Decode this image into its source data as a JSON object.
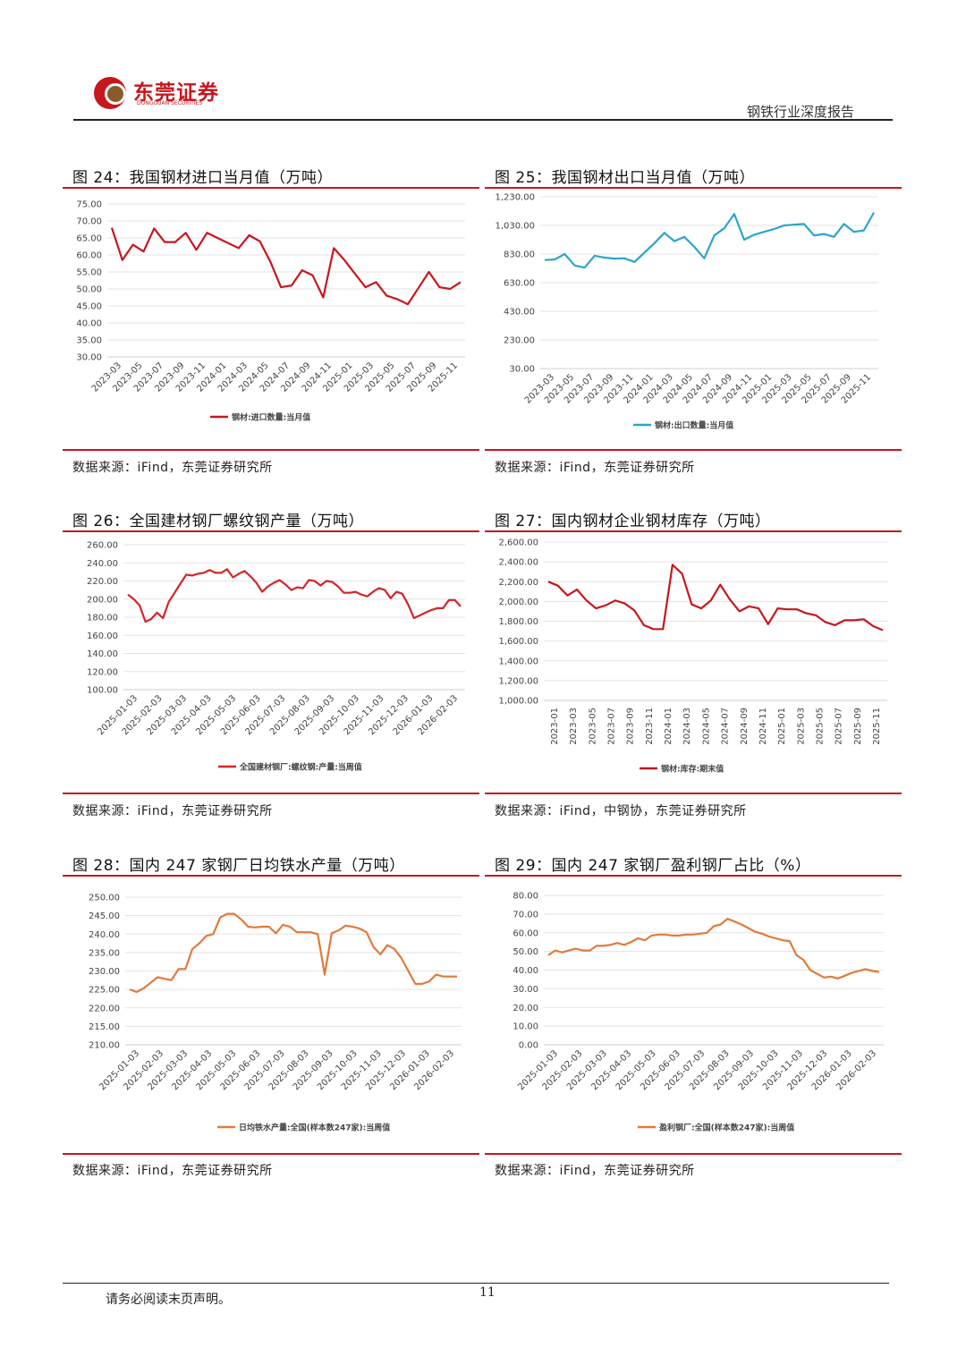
{
  "header": {
    "logo_cn": "东莞证券",
    "logo_en": "DONGGUAN SECURITIES",
    "report_name": "钢铁行业深度报告"
  },
  "panels": [
    {
      "title": "图 24：我国钢材进口当月值（万吨）",
      "source": "数据来源：iFind，东莞证券研究所"
    },
    {
      "title": "图 25：我国钢材出口当月值（万吨）",
      "source": "数据来源：iFind，东莞证券研究所"
    },
    {
      "title": "图 26：全国建材钢厂螺纹钢产量（万吨）",
      "source": "数据来源：iFind，东莞证券研究所"
    },
    {
      "title": "图 27：国内钢材企业钢材库存（万吨）",
      "source": "数据来源：iFind，中钢协，东莞证券研究所"
    },
    {
      "title": "图 28：国内 247 家钢厂日均铁水产量（万吨）",
      "source": "数据来源：iFind，东莞证券研究所"
    },
    {
      "title": "图 29：国内 247 家钢厂盈利钢厂占比（%）",
      "source": "数据来源：iFind，东莞证券研究所"
    }
  ],
  "footer": {
    "note": "请务必阅读末页声明。",
    "page": "11"
  },
  "chart_data": [
    {
      "type": "line",
      "id": "fig24",
      "color": "#c8161d",
      "yticks": [
        "30.00",
        "35.00",
        "40.00",
        "45.00",
        "50.00",
        "55.00",
        "60.00",
        "65.00",
        "70.00",
        "75.00"
      ],
      "ylim": [
        30,
        75
      ],
      "xticks": [
        "2023-03",
        "2023-05",
        "2023-07",
        "2023-09",
        "2023-11",
        "2024-01",
        "2024-03",
        "2024-05",
        "2024-07",
        "2024-09",
        "2024-11",
        "2025-01",
        "2025-03",
        "2025-05",
        "2025-07",
        "2025-09",
        "2025-11"
      ],
      "legend": "钢材:进口数量:当月值",
      "values": [
        68,
        58.5,
        63,
        61,
        67.8,
        63.8,
        63.8,
        66.5,
        61.5,
        66.5,
        65,
        63.5,
        62,
        65.8,
        64,
        58,
        50.5,
        51,
        55.5,
        54,
        47.5,
        62,
        58.5,
        54.5,
        50.5,
        52,
        48,
        47,
        45.5,
        50.2,
        55,
        50.5,
        50,
        52
      ]
    },
    {
      "type": "line",
      "id": "fig25",
      "color": "#2aa6c9",
      "yticks": [
        "30.00",
        "230.00",
        "430.00",
        "630.00",
        "830.00",
        "1,030.00",
        "1,230.00"
      ],
      "ylim": [
        30,
        1230
      ],
      "xticks": [
        "2023-03",
        "2023-05",
        "2023-07",
        "2023-09",
        "2023-11",
        "2024-01",
        "2024-03",
        "2024-05",
        "2024-07",
        "2024-09",
        "2024-11",
        "2025-01",
        "2025-03",
        "2025-05",
        "2025-07",
        "2025-09",
        "2025-11"
      ],
      "legend": "钢材:出口数量:当月值",
      "values": [
        788,
        792,
        830,
        750,
        735,
        818,
        805,
        798,
        800,
        775,
        840,
        906,
        978,
        920,
        950,
        880,
        800,
        960,
        1010,
        1110,
        930,
        965,
        985,
        1005,
        1030,
        1035,
        1040,
        960,
        970,
        950,
        1040,
        985,
        995,
        1120
      ]
    },
    {
      "type": "line",
      "id": "fig26",
      "color": "#d4242a",
      "yticks": [
        "100.00",
        "120.00",
        "140.00",
        "160.00",
        "180.00",
        "200.00",
        "220.00",
        "240.00",
        "260.00"
      ],
      "ylim": [
        100,
        260
      ],
      "xticks": [
        "2025-01-03",
        "2025-02-03",
        "2025-03-03",
        "2025-04-03",
        "2025-05-03",
        "2025-06-03",
        "2025-07-03",
        "2025-08-03",
        "2025-09-03",
        "2025-10-03",
        "2025-11-03",
        "2025-12-03",
        "2026-01-03",
        "2026-02-03"
      ],
      "legend": "全国建材钢厂:螺纹钢:产量:当周值",
      "values": [
        205,
        200,
        193,
        175,
        178,
        185,
        179,
        197,
        207,
        217,
        227,
        226,
        228,
        229,
        232,
        229,
        229,
        233,
        224,
        228,
        231,
        225,
        218,
        208,
        214,
        218,
        221,
        216,
        210,
        213,
        212,
        221,
        220,
        215,
        220,
        219,
        214,
        207,
        207,
        208,
        205,
        203,
        208,
        212,
        210,
        201,
        208,
        206,
        194,
        179,
        182,
        185,
        188,
        190,
        190,
        199,
        199,
        192
      ]
    },
    {
      "type": "line",
      "id": "fig27",
      "color": "#c8161d",
      "yticks": [
        "1,000.00",
        "1,200.00",
        "1,400.00",
        "1,600.00",
        "1,800.00",
        "2,000.00",
        "2,200.00",
        "2,400.00",
        "2,600.00"
      ],
      "ylim": [
        1000,
        2600
      ],
      "xticks": [
        "2023-01",
        "2023-03",
        "2023-05",
        "2023-07",
        "2023-09",
        "2023-11",
        "2024-01",
        "2024-03",
        "2024-05",
        "2024-07",
        "2024-09",
        "2024-11",
        "2025-01",
        "2025-03",
        "2025-05",
        "2025-07",
        "2025-09",
        "2025-11"
      ],
      "legend": "钢材:库存:期末值",
      "values": [
        2200,
        2160,
        2060,
        2120,
        2010,
        1930,
        1960,
        2010,
        1980,
        1910,
        1760,
        1720,
        1720,
        2370,
        2280,
        1970,
        1930,
        2010,
        2170,
        2020,
        1900,
        1950,
        1930,
        1770,
        1930,
        1920,
        1920,
        1880,
        1860,
        1790,
        1760,
        1810,
        1810,
        1820,
        1750,
        1710
      ]
    },
    {
      "type": "line",
      "id": "fig28",
      "color": "#e07a3c",
      "yticks": [
        "210.00",
        "215.00",
        "220.00",
        "225.00",
        "230.00",
        "235.00",
        "240.00",
        "245.00",
        "250.00"
      ],
      "ylim": [
        210,
        250
      ],
      "xticks": [
        "2025-01-03",
        "2025-02-03",
        "2025-03-03",
        "2025-04-03",
        "2025-05-03",
        "2025-06-03",
        "2025-07-03",
        "2025-08-03",
        "2025-09-03",
        "2025-10-03",
        "2025-11-03",
        "2025-12-03",
        "2026-01-03",
        "2026-02-03"
      ],
      "legend": "日均铁水产量:全国(样本数247家):当周值",
      "values": [
        225,
        224.3,
        225.3,
        226.8,
        228.3,
        227.9,
        227.5,
        230.5,
        230.5,
        236,
        237.5,
        239.5,
        240,
        244.5,
        245.5,
        245.5,
        244,
        242,
        241.8,
        242,
        242,
        240.2,
        242.5,
        242,
        240.5,
        240.5,
        240.5,
        240,
        229,
        240.2,
        241,
        242.3,
        242,
        241.5,
        240.5,
        236.5,
        234.5,
        237,
        236,
        233.5,
        230,
        226.5,
        226.5,
        227.2,
        229,
        228.5,
        228.5,
        228.5
      ]
    },
    {
      "type": "line",
      "id": "fig29",
      "color": "#e07a3c",
      "yticks": [
        "0.00",
        "10.00",
        "20.00",
        "30.00",
        "40.00",
        "50.00",
        "60.00",
        "70.00",
        "80.00"
      ],
      "ylim": [
        0,
        80
      ],
      "xticks": [
        "2025-01-03",
        "2025-02-03",
        "2025-03-03",
        "2025-04-03",
        "2025-05-03",
        "2025-06-03",
        "2025-07-03",
        "2025-08-03",
        "2025-09-03",
        "2025-10-03",
        "2025-11-03",
        "2025-12-03",
        "2026-01-03",
        "2026-02-03"
      ],
      "legend": "盈利钢厂:全国(样本数247家):当周值",
      "values": [
        48,
        50.5,
        49.5,
        50.5,
        51.5,
        50.5,
        50.5,
        53,
        53,
        53.5,
        54.5,
        53.5,
        55,
        57,
        56,
        58.5,
        59,
        59,
        58.5,
        58.5,
        59,
        59,
        59.5,
        60,
        63.5,
        64.5,
        67.5,
        66,
        64.5,
        62.5,
        60.5,
        59.5,
        58,
        57,
        56,
        55.5,
        48,
        45.5,
        40,
        38,
        36,
        36.5,
        35.5,
        37,
        38.5,
        39.5,
        40.5,
        39.5,
        39
      ]
    }
  ]
}
